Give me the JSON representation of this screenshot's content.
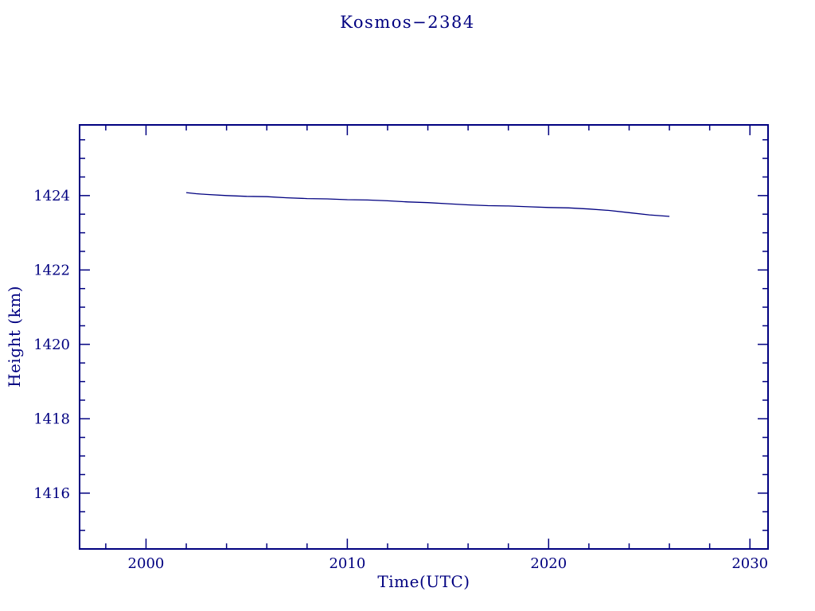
{
  "page": {
    "background": "#ffffff"
  },
  "colors": {
    "accent": "#000080"
  },
  "chart_data": {
    "type": "line",
    "title": "Kosmos−2384",
    "xlabel": "Time(UTC)",
    "ylabel": "Height (km)",
    "xlim": [
      1996.7,
      2030.9
    ],
    "ylim": [
      1414.5,
      1425.9
    ],
    "x_ticks_major": [
      2000,
      2010,
      2020,
      2030
    ],
    "x_tick_labels": [
      "2000",
      "2010",
      "2020",
      "2030"
    ],
    "x_ticks_minor_step": 2,
    "y_ticks_major": [
      1416,
      1418,
      1420,
      1422,
      1424
    ],
    "y_tick_labels": [
      "1416",
      "1418",
      "1420",
      "1422",
      "1424"
    ],
    "y_ticks_minor_step": 0.5,
    "grid": false,
    "legend": false,
    "series": [
      {
        "name": "height_km",
        "x": [
          2002.0,
          2002.5,
          2003,
          2004,
          2005,
          2006,
          2007,
          2008,
          2009,
          2010,
          2011,
          2012,
          2013,
          2014,
          2015,
          2016,
          2017,
          2018,
          2019,
          2020,
          2021,
          2022,
          2023,
          2024,
          2025,
          2026
        ],
        "y": [
          1424.08,
          1424.05,
          1424.03,
          1424.0,
          1423.98,
          1423.97,
          1423.94,
          1423.92,
          1423.91,
          1423.89,
          1423.88,
          1423.86,
          1423.83,
          1423.81,
          1423.78,
          1423.75,
          1423.73,
          1423.72,
          1423.7,
          1423.68,
          1423.67,
          1423.64,
          1423.6,
          1423.54,
          1423.48,
          1423.44
        ]
      }
    ]
  }
}
